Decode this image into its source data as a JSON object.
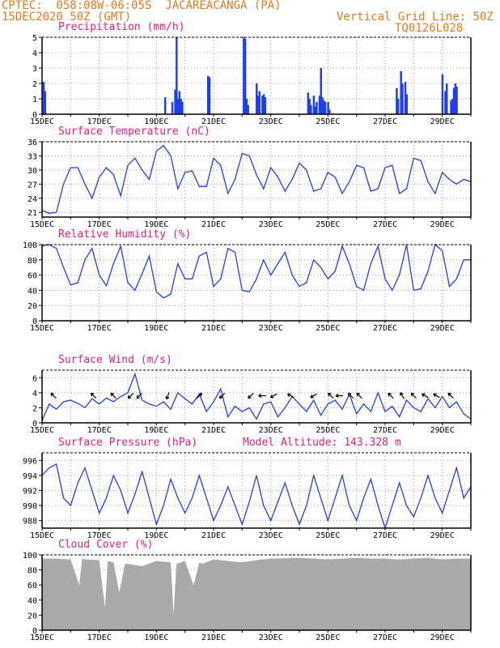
{
  "header": {
    "line1_left": "CPTEC:  058:08W-06:05S  JACAREACANGA (PA)",
    "line2_left": "15DEC2020 50Z (GMT)",
    "line1_right": "Vertical Grid Line: 50Z",
    "line2_right": "TQ0126L028"
  },
  "colors": {
    "line": "#2040e0",
    "bar": "#1f3fe8",
    "cloud": "#a9a9a9",
    "title": "#e0207f",
    "header": "#e07b1c"
  },
  "chart_data": [
    {
      "type": "bar",
      "title": "Precipitation (mm/h)",
      "ylim": [
        0,
        5
      ],
      "yticks": [
        0,
        1,
        2,
        3,
        4,
        5
      ],
      "xticks": [
        "15DEC",
        "17DEC",
        "19DEC",
        "21DEC",
        "23DEC",
        "25DEC",
        "27DEC",
        "29DEC"
      ],
      "x_unit": "days since 15DEC 00Z",
      "x_range": [
        0,
        15
      ],
      "x": [
        0.05,
        0.1,
        4.3,
        4.55,
        4.65,
        4.7,
        4.75,
        4.8,
        4.85,
        4.9,
        5.8,
        5.85,
        7.05,
        7.1,
        7.15,
        7.2,
        7.5,
        7.55,
        7.6,
        7.7,
        7.75,
        7.8,
        9.3,
        9.35,
        9.4,
        9.5,
        9.55,
        9.6,
        9.7,
        9.75,
        9.8,
        9.85,
        9.9,
        10.0,
        10.05,
        12.4,
        12.45,
        12.55,
        12.6,
        12.7,
        12.75,
        14.0,
        14.1,
        14.15,
        14.3,
        14.35,
        14.4,
        14.45,
        14.5
      ],
      "values": [
        2.1,
        1.5,
        1.1,
        0.8,
        1.6,
        5.0,
        1.0,
        1.5,
        1.0,
        0.8,
        2.5,
        2.4,
        5.0,
        4.9,
        1.0,
        0.6,
        2.0,
        1.2,
        1.5,
        1.2,
        1.3,
        1.1,
        1.4,
        1.0,
        0.6,
        1.2,
        0.5,
        0.8,
        1.2,
        3.0,
        1.1,
        0.9,
        0.8,
        0.8,
        0.3,
        1.7,
        1.0,
        2.8,
        2.0,
        2.1,
        1.3,
        2.6,
        1.5,
        2.0,
        0.9,
        1.0,
        1.7,
        2.0,
        1.8
      ]
    },
    {
      "type": "line",
      "title": "Surface Temperature (nC)",
      "ylim": [
        20,
        36
      ],
      "yticks": [
        21,
        24,
        27,
        30,
        33,
        36
      ],
      "xticks": [
        "15DEC",
        "17DEC",
        "19DEC",
        "21DEC",
        "23DEC",
        "25DEC",
        "27DEC",
        "29DEC"
      ],
      "x": [
        0,
        0.25,
        0.5,
        0.75,
        1.0,
        1.25,
        1.5,
        1.75,
        2.0,
        2.25,
        2.5,
        2.75,
        3.0,
        3.25,
        3.5,
        3.75,
        4.0,
        4.25,
        4.5,
        4.75,
        5.0,
        5.25,
        5.5,
        5.75,
        6.0,
        6.25,
        6.5,
        6.75,
        7.0,
        7.25,
        7.5,
        7.75,
        8.0,
        8.25,
        8.5,
        8.75,
        9.0,
        9.25,
        9.5,
        9.75,
        10.0,
        10.25,
        10.5,
        10.75,
        11.0,
        11.25,
        11.5,
        11.75,
        12.0,
        12.25,
        12.5,
        12.75,
        13.0,
        13.25,
        13.5,
        13.75,
        14.0,
        14.25,
        14.5,
        14.75,
        15.0
      ],
      "values": [
        21.5,
        20.8,
        21.0,
        27.0,
        30.5,
        30.5,
        27.0,
        24.0,
        28.5,
        30.5,
        29.0,
        24.5,
        31.0,
        32.5,
        30.0,
        28.0,
        34.0,
        35.2,
        33.0,
        26.0,
        29.5,
        29.8,
        26.5,
        26.5,
        32.5,
        31.0,
        25.0,
        28.0,
        33.5,
        33.0,
        29.0,
        26.0,
        30.5,
        28.5,
        25.5,
        28.0,
        31.5,
        30.0,
        25.5,
        26.0,
        29.5,
        28.5,
        25.0,
        27.5,
        31.0,
        30.5,
        25.5,
        26.0,
        30.5,
        31.0,
        25.0,
        26.0,
        32.5,
        32.0,
        27.5,
        25.0,
        29.5,
        28.0,
        27.0,
        28.0,
        27.5
      ]
    },
    {
      "type": "line",
      "title": "Relative Humidity (%)",
      "ylim": [
        0,
        100
      ],
      "yticks": [
        0,
        20,
        40,
        60,
        80,
        100
      ],
      "xticks": [
        "15DEC",
        "17DEC",
        "19DEC",
        "21DEC",
        "23DEC",
        "25DEC",
        "27DEC",
        "29DEC"
      ],
      "x": [
        0,
        0.25,
        0.5,
        0.75,
        1.0,
        1.25,
        1.5,
        1.75,
        2.0,
        2.25,
        2.5,
        2.75,
        3.0,
        3.25,
        3.5,
        3.75,
        4.0,
        4.25,
        4.5,
        4.75,
        5.0,
        5.25,
        5.5,
        5.75,
        6.0,
        6.25,
        6.5,
        6.75,
        7.0,
        7.25,
        7.5,
        7.75,
        8.0,
        8.25,
        8.5,
        8.75,
        9.0,
        9.25,
        9.5,
        9.75,
        10.0,
        10.25,
        10.5,
        10.75,
        11.0,
        11.25,
        11.5,
        11.75,
        12.0,
        12.25,
        12.5,
        12.75,
        13.0,
        13.25,
        13.5,
        13.75,
        14.0,
        14.25,
        14.5,
        14.75,
        15.0
      ],
      "values": [
        98,
        100,
        95,
        70,
        47,
        50,
        80,
        95,
        60,
        46,
        75,
        98,
        50,
        40,
        62,
        85,
        38,
        30,
        35,
        75,
        55,
        55,
        85,
        90,
        45,
        55,
        95,
        90,
        40,
        38,
        55,
        80,
        60,
        75,
        90,
        60,
        45,
        50,
        80,
        70,
        55,
        65,
        98,
        75,
        45,
        40,
        75,
        98,
        55,
        40,
        60,
        100,
        40,
        42,
        65,
        100,
        92,
        45,
        55,
        80,
        80
      ]
    },
    {
      "type": "line",
      "title": "Surface Wind (m/s)",
      "ylim": [
        0,
        7
      ],
      "yticks": [
        0,
        2,
        4,
        6
      ],
      "xticks": [
        "15DEC",
        "17DEC",
        "19DEC",
        "21DEC",
        "23DEC",
        "25DEC",
        "27DEC",
        "29DEC"
      ],
      "x": [
        0,
        0.25,
        0.5,
        0.75,
        1.0,
        1.25,
        1.5,
        1.75,
        2.0,
        2.25,
        2.5,
        2.75,
        3.0,
        3.25,
        3.5,
        3.75,
        4.0,
        4.25,
        4.5,
        4.75,
        5.0,
        5.25,
        5.5,
        5.75,
        6.0,
        6.25,
        6.5,
        6.75,
        7.0,
        7.25,
        7.5,
        7.75,
        8.0,
        8.25,
        8.5,
        8.75,
        9.0,
        9.25,
        9.5,
        9.75,
        10.0,
        10.25,
        10.5,
        10.75,
        11.0,
        11.25,
        11.5,
        11.75,
        12.0,
        12.25,
        12.5,
        12.75,
        13.0,
        13.25,
        13.5,
        13.75,
        14.0,
        14.25,
        14.5,
        14.75,
        15.0
      ],
      "values": [
        0.3,
        2.5,
        1.8,
        2.8,
        3.0,
        2.6,
        2.0,
        3.2,
        2.5,
        3.3,
        2.8,
        3.5,
        4.0,
        6.5,
        3.0,
        2.5,
        2.2,
        2.8,
        1.8,
        4.0,
        3.2,
        2.5,
        3.8,
        1.5,
        2.8,
        4.5,
        0.8,
        2.2,
        1.5,
        2.0,
        0.5,
        2.5,
        2.8,
        0.8,
        2.0,
        3.5,
        2.5,
        1.5,
        3.0,
        1.0,
        2.5,
        3.0,
        1.8,
        3.8,
        1.2,
        2.5,
        1.5,
        4.0,
        1.5,
        2.2,
        0.8,
        3.0,
        2.0,
        1.5,
        3.2,
        2.0,
        3.5,
        2.0,
        2.8,
        1.2,
        0.5
      ],
      "arrows": [
        {
          "x": 0.4,
          "dir": 315
        },
        {
          "x": 1.8,
          "dir": 315
        },
        {
          "x": 2.5,
          "dir": 315
        },
        {
          "x": 3.1,
          "dir": 225
        },
        {
          "x": 3.4,
          "dir": 225
        },
        {
          "x": 4.4,
          "dir": 200
        },
        {
          "x": 5.5,
          "dir": 45
        },
        {
          "x": 6.3,
          "dir": 225
        },
        {
          "x": 7.3,
          "dir": 225
        },
        {
          "x": 7.7,
          "dir": 270
        },
        {
          "x": 8.1,
          "dir": 240
        },
        {
          "x": 8.7,
          "dir": 300
        },
        {
          "x": 9.5,
          "dir": 240
        },
        {
          "x": 10.1,
          "dir": 315
        },
        {
          "x": 10.4,
          "dir": 270
        },
        {
          "x": 10.8,
          "dir": 315
        },
        {
          "x": 11.1,
          "dir": 315
        },
        {
          "x": 12.2,
          "dir": 315
        },
        {
          "x": 12.6,
          "dir": 330
        },
        {
          "x": 13.0,
          "dir": 315
        },
        {
          "x": 13.4,
          "dir": 300
        },
        {
          "x": 13.8,
          "dir": 300
        },
        {
          "x": 14.3,
          "dir": 315
        }
      ]
    },
    {
      "type": "line",
      "title": "Surface Pressure (hPa)",
      "annotation": "Model Altitude: 143.328 m",
      "ylim": [
        987,
        997
      ],
      "yticks": [
        988,
        990,
        992,
        994,
        996
      ],
      "xticks": [
        "15DEC",
        "17DEC",
        "19DEC",
        "21DEC",
        "23DEC",
        "25DEC",
        "27DEC",
        "29DEC"
      ],
      "x": [
        0,
        0.25,
        0.5,
        0.75,
        1.0,
        1.25,
        1.5,
        1.75,
        2.0,
        2.25,
        2.5,
        2.75,
        3.0,
        3.25,
        3.5,
        3.75,
        4.0,
        4.25,
        4.5,
        4.75,
        5.0,
        5.25,
        5.5,
        5.75,
        6.0,
        6.25,
        6.5,
        6.75,
        7.0,
        7.25,
        7.5,
        7.75,
        8.0,
        8.25,
        8.5,
        8.75,
        9.0,
        9.25,
        9.5,
        9.75,
        10.0,
        10.25,
        10.5,
        10.75,
        11.0,
        11.25,
        11.5,
        11.75,
        12.0,
        12.25,
        12.5,
        12.75,
        13.0,
        13.25,
        13.5,
        13.75,
        14.0,
        14.25,
        14.5,
        14.75,
        15.0
      ],
      "values": [
        994,
        995,
        995.5,
        991,
        990,
        993,
        995,
        992,
        989,
        991,
        994,
        992,
        989,
        991.5,
        994.5,
        991,
        987.5,
        990,
        993.5,
        991,
        989,
        991,
        994,
        991,
        988,
        990,
        992.5,
        990,
        987.5,
        990.5,
        994,
        990,
        988,
        990.5,
        993,
        990,
        987.5,
        990,
        994,
        991,
        988,
        991,
        994,
        990,
        988,
        991,
        993.5,
        990,
        987,
        990,
        993,
        990,
        988.5,
        991,
        994,
        991,
        989,
        992,
        995,
        991,
        992.5
      ]
    },
    {
      "type": "area",
      "title": "Cloud Cover (%)",
      "ylim": [
        0,
        100
      ],
      "yticks": [
        0,
        20,
        40,
        60,
        80,
        100
      ],
      "xticks": [
        "15DEC",
        "17DEC",
        "19DEC",
        "21DEC",
        "23DEC",
        "25DEC",
        "27DEC",
        "29DEC"
      ],
      "x": [
        0,
        0.5,
        1.0,
        1.3,
        1.4,
        1.5,
        2.0,
        2.2,
        2.3,
        2.5,
        2.7,
        2.9,
        3.0,
        3.5,
        4.0,
        4.5,
        4.6,
        4.7,
        5.0,
        5.3,
        5.5,
        5.6,
        6.0,
        6.5,
        7.0,
        7.5,
        8.0,
        9.0,
        10.0,
        10.5,
        11.0,
        11.5,
        12.0,
        12.5,
        13.0,
        13.5,
        14.0,
        14.5,
        15.0
      ],
      "values": [
        95,
        95,
        94,
        60,
        95,
        94,
        93,
        30,
        92,
        90,
        50,
        88,
        88,
        85,
        92,
        90,
        20,
        88,
        92,
        60,
        90,
        88,
        94,
        92,
        90,
        93,
        95,
        96,
        94,
        95,
        96,
        95,
        95,
        94,
        95,
        96,
        94,
        95,
        95
      ]
    }
  ]
}
